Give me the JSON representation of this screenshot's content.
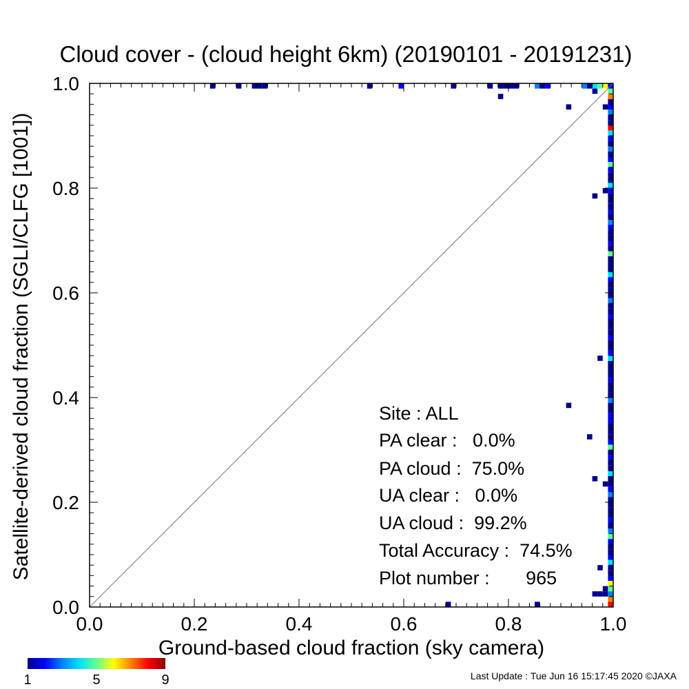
{
  "chart_data": {
    "type": "heatmap",
    "title": "Cloud cover - (cloud height 6km)  (20190101 - 20191231)",
    "xlabel": "Ground-based cloud fraction (sky camera)",
    "ylabel": "Satellite-derived cloud fraction (SGLI/CLFG [1001])",
    "xlim": [
      0.0,
      1.0
    ],
    "ylim": [
      0.0,
      1.0
    ],
    "xticks": [
      "0.0",
      "0.2",
      "0.4",
      "0.6",
      "0.8",
      "1.0"
    ],
    "yticks": [
      "0.0",
      "0.2",
      "0.4",
      "0.6",
      "0.8",
      "1.0"
    ],
    "grid": false,
    "reference_line": "1:1 diagonal",
    "bin_size": 0.01,
    "colorbar": {
      "min": 1,
      "max": 9,
      "tick_labels": [
        "1",
        "5",
        "9"
      ],
      "placement": "bottom-left",
      "colors": [
        "#00008b",
        "#0000ff",
        "#0080ff",
        "#00e0ff",
        "#60ff90",
        "#ffff00",
        "#ff8000",
        "#ff0000",
        "#8b0000"
      ]
    },
    "points": [
      {
        "x": 0.23,
        "y": 0.99,
        "count": 1
      },
      {
        "x": 0.28,
        "y": 0.99,
        "count": 1
      },
      {
        "x": 0.31,
        "y": 0.99,
        "count": 1
      },
      {
        "x": 0.32,
        "y": 0.99,
        "count": 1
      },
      {
        "x": 0.33,
        "y": 0.99,
        "count": 1
      },
      {
        "x": 0.53,
        "y": 0.99,
        "count": 1
      },
      {
        "x": 0.59,
        "y": 0.99,
        "count": 2
      },
      {
        "x": 0.69,
        "y": 0.99,
        "count": 1
      },
      {
        "x": 0.76,
        "y": 0.99,
        "count": 1
      },
      {
        "x": 0.78,
        "y": 0.99,
        "count": 1
      },
      {
        "x": 0.79,
        "y": 0.99,
        "count": 1
      },
      {
        "x": 0.8,
        "y": 0.99,
        "count": 1
      },
      {
        "x": 0.81,
        "y": 0.99,
        "count": 1
      },
      {
        "x": 0.85,
        "y": 0.99,
        "count": 3
      },
      {
        "x": 0.86,
        "y": 0.99,
        "count": 1
      },
      {
        "x": 0.87,
        "y": 0.99,
        "count": 2
      },
      {
        "x": 0.94,
        "y": 0.99,
        "count": 3
      },
      {
        "x": 0.95,
        "y": 0.99,
        "count": 1
      },
      {
        "x": 0.96,
        "y": 0.99,
        "count": 4
      },
      {
        "x": 0.97,
        "y": 0.99,
        "count": 5
      },
      {
        "x": 0.98,
        "y": 0.99,
        "count": 6
      },
      {
        "x": 0.99,
        "y": 0.99,
        "count": 9
      },
      {
        "x": 0.78,
        "y": 0.97,
        "count": 1
      },
      {
        "x": 0.96,
        "y": 0.98,
        "count": 1
      },
      {
        "x": 0.91,
        "y": 0.95,
        "count": 1
      },
      {
        "x": 0.98,
        "y": 0.95,
        "count": 1
      },
      {
        "x": 0.96,
        "y": 0.78,
        "count": 1
      },
      {
        "x": 0.98,
        "y": 0.79,
        "count": 1
      },
      {
        "x": 0.97,
        "y": 0.47,
        "count": 1
      },
      {
        "x": 0.91,
        "y": 0.38,
        "count": 1
      },
      {
        "x": 0.95,
        "y": 0.32,
        "count": 1
      },
      {
        "x": 0.96,
        "y": 0.24,
        "count": 1
      },
      {
        "x": 0.98,
        "y": 0.23,
        "count": 1
      },
      {
        "x": 0.97,
        "y": 0.07,
        "count": 1
      },
      {
        "x": 0.98,
        "y": 0.02,
        "count": 1
      },
      {
        "x": 0.97,
        "y": 0.02,
        "count": 1
      },
      {
        "x": 0.96,
        "y": 0.02,
        "count": 1
      },
      {
        "x": 0.98,
        "y": 0.03,
        "count": 1
      },
      {
        "x": 0.99,
        "y": 0.01,
        "count": 7
      },
      {
        "x": 0.68,
        "y": 0.0,
        "count": 1
      },
      {
        "x": 0.85,
        "y": 0.0,
        "count": 1
      }
    ],
    "right_column": {
      "x": 0.99,
      "counts": [
        8,
        7,
        3,
        5,
        6,
        2,
        1,
        1,
        4,
        2,
        1,
        1,
        2,
        5,
        3,
        1,
        2,
        1,
        1,
        1,
        1,
        3,
        2,
        1,
        1,
        4,
        1,
        1,
        2,
        1,
        5,
        2,
        1,
        1,
        1,
        2,
        2,
        1,
        1,
        3,
        1,
        1,
        1,
        2,
        1,
        1,
        1,
        4,
        2,
        1,
        1,
        2,
        1,
        1,
        1,
        2,
        1,
        1,
        3,
        1,
        1,
        1,
        2,
        4,
        1,
        1,
        1,
        5,
        1,
        2,
        1,
        1,
        2,
        3,
        1,
        2,
        1,
        1,
        1,
        2,
        4,
        1,
        1,
        2,
        5,
        2,
        1,
        3,
        1,
        2,
        4,
        8,
        1,
        1,
        3,
        2,
        1,
        7,
        5,
        2
      ]
    }
  },
  "stats": {
    "site": "Site : ALL",
    "pa_clear": "PA clear :   0.0%",
    "pa_cloud": "PA cloud :  75.0%",
    "ua_clear": "UA clear :   0.0%",
    "ua_cloud": "UA cloud :  99.2%",
    "total_accuracy": "Total Accuracy :  74.5%",
    "plot_number": "Plot number :       965"
  },
  "footer": "Last Update : Tue Jun 16 15:17:45 2020  ©JAXA"
}
